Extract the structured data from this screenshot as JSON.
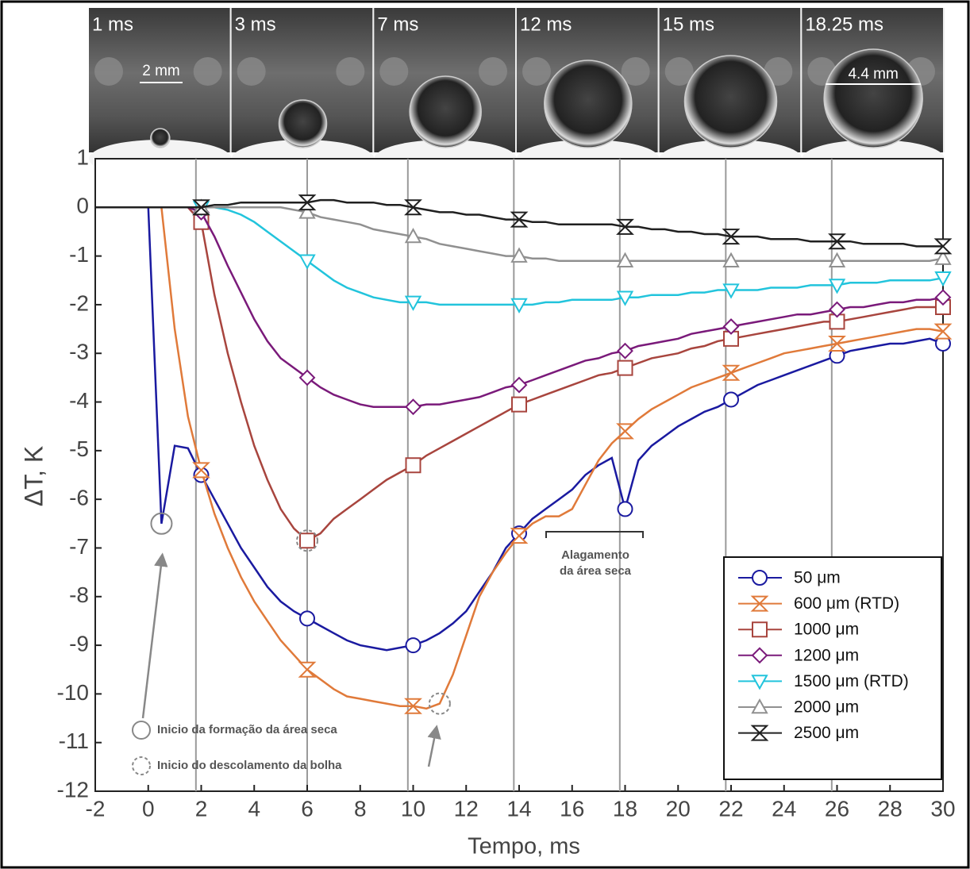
{
  "chart_data": {
    "type": "line",
    "x_label": "Tempo, ms",
    "y_label": "ΔT, K",
    "xlim": [
      -2,
      30
    ],
    "ylim": [
      -12,
      1
    ],
    "xticks": [
      -2,
      0,
      2,
      4,
      6,
      8,
      10,
      12,
      14,
      16,
      18,
      20,
      22,
      24,
      26,
      28,
      30
    ],
    "yticks": [
      1,
      0,
      -1,
      -2,
      -3,
      -4,
      -5,
      -6,
      -7,
      -8,
      -9,
      -10,
      -11,
      -12
    ],
    "vlines": [
      1.8,
      6,
      9.8,
      13.8,
      17.8,
      21.8,
      25.8
    ],
    "x": [
      -2,
      -1.5,
      -1,
      -0.5,
      0,
      0.5,
      1,
      1.5,
      2,
      2.5,
      3,
      3.5,
      4,
      4.5,
      5,
      5.5,
      6,
      6.5,
      7,
      7.5,
      8,
      8.5,
      9,
      9.5,
      10,
      10.5,
      11,
      11.5,
      12,
      12.5,
      13,
      13.5,
      14,
      14.5,
      15,
      15.5,
      16,
      16.5,
      17,
      17.5,
      18,
      18.5,
      19,
      19.5,
      20,
      20.5,
      21,
      21.5,
      22,
      22.5,
      23,
      23.5,
      24,
      24.5,
      25,
      25.5,
      26,
      26.5,
      27,
      27.5,
      28,
      28.5,
      29,
      29.5,
      30
    ],
    "series": [
      {
        "name": "50 μm",
        "color": "#1a1aa0",
        "marker": "circle",
        "values": [
          0,
          0,
          0,
          0,
          0,
          -6.5,
          -4.9,
          -4.95,
          -5.5,
          -6.0,
          -6.5,
          -7.0,
          -7.4,
          -7.8,
          -8.1,
          -8.3,
          -8.45,
          -8.6,
          -8.75,
          -8.9,
          -9.0,
          -9.05,
          -9.1,
          -9.05,
          -9.0,
          -8.9,
          -8.75,
          -8.55,
          -8.3,
          -7.9,
          -7.5,
          -7.0,
          -6.7,
          -6.4,
          -6.2,
          -6.0,
          -5.8,
          -5.5,
          -5.3,
          -5.15,
          -6.2,
          -5.2,
          -4.9,
          -4.7,
          -4.5,
          -4.35,
          -4.2,
          -4.1,
          -3.95,
          -3.8,
          -3.65,
          -3.55,
          -3.45,
          -3.35,
          -3.25,
          -3.15,
          -3.05,
          -2.95,
          -2.9,
          -2.85,
          -2.8,
          -2.8,
          -2.75,
          -2.7,
          -2.8
        ]
      },
      {
        "name": "600 μm (RTD)",
        "color": "#e07a3a",
        "marker": "hourglass",
        "values": [
          0,
          0,
          0,
          0,
          0,
          0,
          -2.5,
          -4.3,
          -5.4,
          -6.3,
          -7.0,
          -7.6,
          -8.1,
          -8.5,
          -8.9,
          -9.2,
          -9.5,
          -9.7,
          -9.9,
          -10.05,
          -10.1,
          -10.15,
          -10.2,
          -10.25,
          -10.25,
          -10.3,
          -10.2,
          -9.6,
          -8.8,
          -8.0,
          -7.5,
          -7.1,
          -6.75,
          -6.5,
          -6.35,
          -6.35,
          -6.2,
          -5.7,
          -5.2,
          -4.85,
          -4.6,
          -4.35,
          -4.15,
          -4.0,
          -3.85,
          -3.7,
          -3.6,
          -3.5,
          -3.4,
          -3.3,
          -3.2,
          -3.1,
          -3.0,
          -2.95,
          -2.9,
          -2.85,
          -2.8,
          -2.75,
          -2.7,
          -2.65,
          -2.6,
          -2.55,
          -2.5,
          -2.5,
          -2.55
        ]
      },
      {
        "name": "1000 μm",
        "color": "#a8453e",
        "marker": "square",
        "values": [
          0,
          0,
          0,
          0,
          0,
          0,
          0,
          0,
          -0.3,
          -1.8,
          -3.0,
          -4.0,
          -4.9,
          -5.6,
          -6.2,
          -6.6,
          -6.85,
          -6.7,
          -6.4,
          -6.2,
          -6.0,
          -5.8,
          -5.6,
          -5.45,
          -5.3,
          -5.1,
          -4.95,
          -4.8,
          -4.65,
          -4.5,
          -4.35,
          -4.2,
          -4.05,
          -3.95,
          -3.85,
          -3.75,
          -3.65,
          -3.55,
          -3.45,
          -3.4,
          -3.3,
          -3.2,
          -3.1,
          -3.05,
          -3.0,
          -2.9,
          -2.85,
          -2.75,
          -2.7,
          -2.65,
          -2.6,
          -2.55,
          -2.5,
          -2.45,
          -2.4,
          -2.35,
          -2.35,
          -2.3,
          -2.25,
          -2.2,
          -2.15,
          -2.1,
          -2.05,
          -2.05,
          -2.05
        ]
      },
      {
        "name": "1200 μm",
        "color": "#7a1a7a",
        "marker": "diamond",
        "values": [
          0,
          0,
          0,
          0,
          0,
          0,
          0,
          0,
          -0.1,
          -0.6,
          -1.2,
          -1.75,
          -2.3,
          -2.75,
          -3.1,
          -3.3,
          -3.5,
          -3.7,
          -3.85,
          -3.95,
          -4.05,
          -4.1,
          -4.1,
          -4.1,
          -4.1,
          -4.05,
          -4.05,
          -4.0,
          -3.95,
          -3.9,
          -3.8,
          -3.7,
          -3.65,
          -3.55,
          -3.45,
          -3.35,
          -3.25,
          -3.15,
          -3.1,
          -3.0,
          -2.95,
          -2.85,
          -2.8,
          -2.75,
          -2.7,
          -2.6,
          -2.55,
          -2.5,
          -2.45,
          -2.4,
          -2.35,
          -2.3,
          -2.25,
          -2.2,
          -2.2,
          -2.15,
          -2.1,
          -2.05,
          -2.05,
          -2.0,
          -1.95,
          -1.95,
          -1.9,
          -1.9,
          -1.85
        ]
      },
      {
        "name": "1500 μm (RTD)",
        "color": "#22c4dc",
        "marker": "triangle-down",
        "values": [
          0,
          0,
          0,
          0,
          0,
          0,
          0,
          0,
          0,
          0,
          -0.05,
          -0.15,
          -0.3,
          -0.5,
          -0.7,
          -0.9,
          -1.1,
          -1.3,
          -1.5,
          -1.65,
          -1.75,
          -1.85,
          -1.9,
          -1.95,
          -1.95,
          -1.95,
          -2.0,
          -2.0,
          -2.0,
          -2.0,
          -2.0,
          -2.0,
          -2.0,
          -2.0,
          -1.95,
          -1.95,
          -1.9,
          -1.9,
          -1.9,
          -1.9,
          -1.85,
          -1.85,
          -1.8,
          -1.8,
          -1.8,
          -1.75,
          -1.75,
          -1.7,
          -1.7,
          -1.7,
          -1.7,
          -1.65,
          -1.65,
          -1.65,
          -1.6,
          -1.6,
          -1.6,
          -1.55,
          -1.55,
          -1.55,
          -1.5,
          -1.5,
          -1.5,
          -1.5,
          -1.45
        ]
      },
      {
        "name": "2000 μm",
        "color": "#909090",
        "marker": "triangle-up",
        "values": [
          0,
          0,
          0,
          0,
          0,
          0,
          0,
          0,
          0,
          0,
          0,
          0,
          0,
          0,
          0,
          -0.05,
          -0.1,
          -0.2,
          -0.25,
          -0.3,
          -0.35,
          -0.45,
          -0.5,
          -0.55,
          -0.6,
          -0.65,
          -0.75,
          -0.8,
          -0.85,
          -0.9,
          -0.95,
          -1.0,
          -1.0,
          -1.05,
          -1.05,
          -1.1,
          -1.1,
          -1.1,
          -1.1,
          -1.1,
          -1.1,
          -1.1,
          -1.1,
          -1.1,
          -1.1,
          -1.1,
          -1.1,
          -1.1,
          -1.1,
          -1.1,
          -1.1,
          -1.1,
          -1.1,
          -1.1,
          -1.1,
          -1.1,
          -1.1,
          -1.1,
          -1.1,
          -1.1,
          -1.1,
          -1.1,
          -1.1,
          -1.1,
          -1.05
        ]
      },
      {
        "name": "2500 μm",
        "color": "#202020",
        "marker": "hourglass",
        "values": [
          0,
          0,
          0,
          0,
          0,
          0,
          0,
          0,
          0,
          0.05,
          0.05,
          0.1,
          0.1,
          0.1,
          0.1,
          0.1,
          0.1,
          0.15,
          0.15,
          0.1,
          0.1,
          0.1,
          0.05,
          0.05,
          0.0,
          -0.05,
          -0.1,
          -0.1,
          -0.15,
          -0.15,
          -0.2,
          -0.25,
          -0.25,
          -0.3,
          -0.3,
          -0.35,
          -0.35,
          -0.35,
          -0.35,
          -0.35,
          -0.4,
          -0.4,
          -0.45,
          -0.45,
          -0.5,
          -0.5,
          -0.55,
          -0.55,
          -0.6,
          -0.6,
          -0.6,
          -0.65,
          -0.65,
          -0.65,
          -0.7,
          -0.7,
          -0.7,
          -0.7,
          -0.75,
          -0.75,
          -0.75,
          -0.75,
          -0.8,
          -0.8,
          -0.8
        ]
      }
    ],
    "annotations": {
      "dry_start": "Inicio da formação da área seca",
      "detach": "Inicio do descolamento da bolha",
      "flooding": [
        "Alagamento",
        "da área seca"
      ]
    },
    "photos": {
      "labels": [
        "1 ms",
        "3 ms",
        "7 ms",
        "12 ms",
        "15 ms",
        "18.25 ms"
      ],
      "scale_labels": [
        "2 mm",
        "4.4 mm"
      ]
    }
  }
}
